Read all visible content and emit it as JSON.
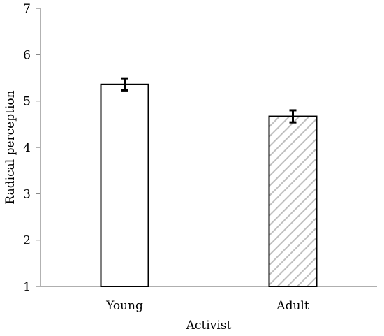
{
  "chart_data": {
    "type": "bar",
    "title": "",
    "xlabel": "Activist",
    "ylabel": "Radical perception",
    "categories": [
      "Young",
      "Adult"
    ],
    "values": [
      5.36,
      4.67
    ],
    "error": [
      0.13,
      0.13
    ],
    "ylim": [
      1,
      7
    ],
    "yticks": [
      1,
      2,
      3,
      4,
      5,
      6,
      7
    ],
    "grid": false,
    "legend": "none",
    "bar_fills": [
      "solid-white",
      "diagonal-hatch"
    ],
    "colors": {
      "bar_outline": "#000000",
      "bar_fill": "#ffffff",
      "hatch": "#bfbfbf",
      "axis": "#7f7f7f",
      "error_bar": "#000000"
    }
  }
}
